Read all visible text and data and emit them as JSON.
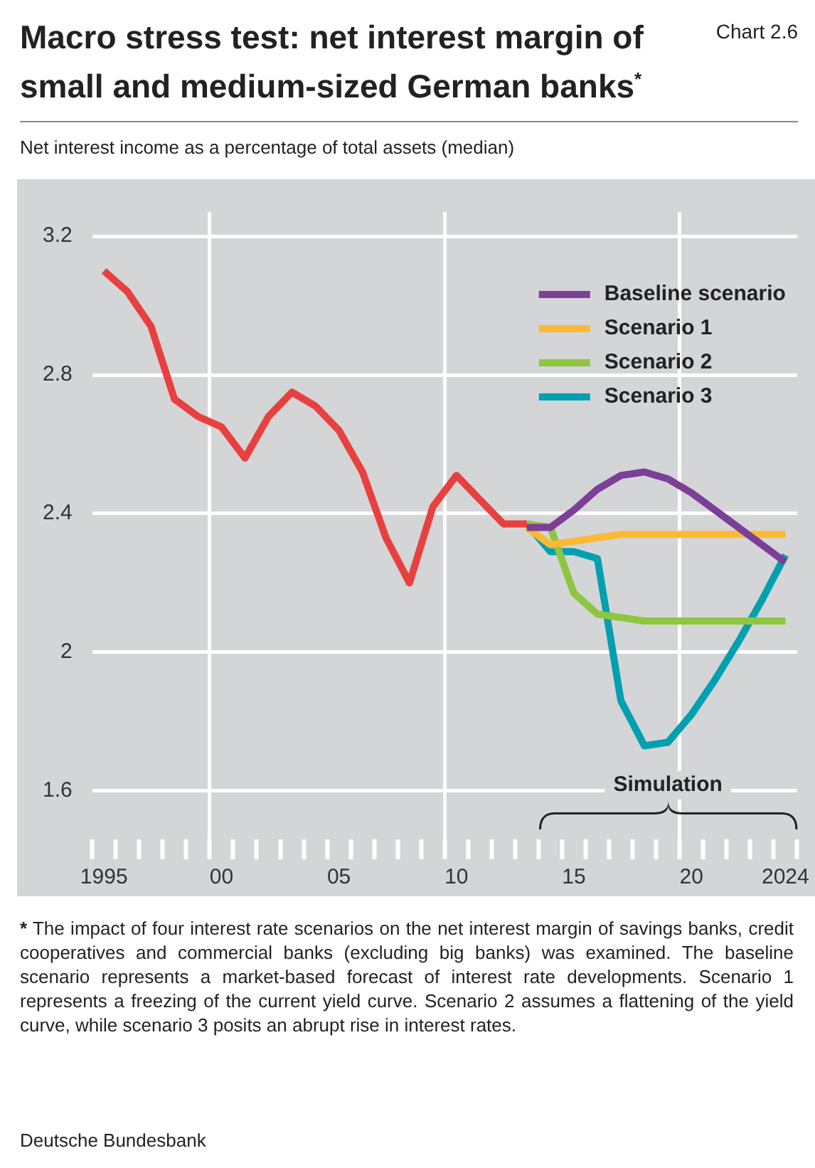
{
  "chart_data": {
    "type": "line",
    "title": "Macro stress test: net interest margin of small and medium-sized German banks$^{*}$",
    "subtitle": "Net interest income as a percentage of total assets (median)",
    "annotations": [
      "Chart 2.6",
      "Simulation",
      "* The impact of four interest rate scenarios on the net interest margin of savings banks, credit cooperatives and commercial banks (excluding big banks) was examined. The baseline scenario represents a market-based forecast of interest rate developments. Scenario 1 represents a freezing of the current yield curve. Scenario 2 assumes a flattening of the yield curve, while scenario 3 posits an abrupt rise in interest rates.",
      "Deutsche Bundesbank"
    ],
    "categories": [
      "1995",
      null,
      null,
      null,
      null,
      "00",
      null,
      null,
      null,
      null,
      "05",
      null,
      null,
      null,
      null,
      "10",
      null,
      null,
      null,
      null,
      "15",
      null,
      null,
      null,
      null,
      "20",
      null,
      null,
      null,
      "2024"
    ],
    "series": [
      {
        "color": "#e8403f",
        "values": [
          3.1,
          3.04,
          2.94,
          2.73,
          2.68,
          2.65,
          2.56,
          2.68,
          2.75,
          2.71,
          2.64,
          2.52,
          2.33,
          2.2,
          2.42,
          2.51,
          2.44,
          2.37,
          2.37,
          null,
          null,
          null,
          null,
          null,
          null,
          null,
          null,
          null,
          null,
          null
        ]
      },
      {
        "name": "Baseline scenario",
        "color": "#7b3f98",
        "values": [
          null,
          null,
          null,
          null,
          null,
          null,
          null,
          null,
          null,
          null,
          null,
          null,
          null,
          null,
          null,
          null,
          null,
          null,
          2.36,
          2.36,
          2.41,
          2.47,
          2.51,
          2.52,
          2.5,
          2.46,
          2.41,
          2.36,
          2.31,
          2.26
        ]
      },
      {
        "name": "Scenario 1",
        "color": "#fdb933",
        "values": [
          null,
          null,
          null,
          null,
          null,
          null,
          null,
          null,
          null,
          null,
          null,
          null,
          null,
          null,
          null,
          null,
          null,
          null,
          2.36,
          2.31,
          2.32,
          2.33,
          2.34,
          2.34,
          2.34,
          2.34,
          2.34,
          2.34,
          2.34,
          2.34
        ]
      },
      {
        "name": "Scenario 2",
        "color": "#8dc63f",
        "values": [
          null,
          null,
          null,
          null,
          null,
          null,
          null,
          null,
          null,
          null,
          null,
          null,
          null,
          null,
          null,
          null,
          null,
          null,
          2.37,
          2.36,
          2.17,
          2.11,
          2.1,
          2.09,
          2.09,
          2.09,
          2.09,
          2.09,
          2.09,
          2.09
        ]
      },
      {
        "name": "Scenario 3",
        "color": "#00a0b0",
        "values": [
          null,
          null,
          null,
          null,
          null,
          null,
          null,
          null,
          null,
          null,
          null,
          null,
          null,
          null,
          null,
          null,
          null,
          null,
          2.37,
          2.29,
          2.29,
          2.27,
          1.86,
          1.73,
          1.74,
          1.82,
          1.92,
          2.03,
          2.15,
          2.28
        ]
      }
    ],
    "ylim": [
      1.46,
      3.27
    ],
    "yticks": [
      1.6,
      2.0,
      2.4,
      2.8,
      3.2
    ],
    "grid": true,
    "legend": "top right",
    "marker": "none",
    "line_style": "solid"
  }
}
